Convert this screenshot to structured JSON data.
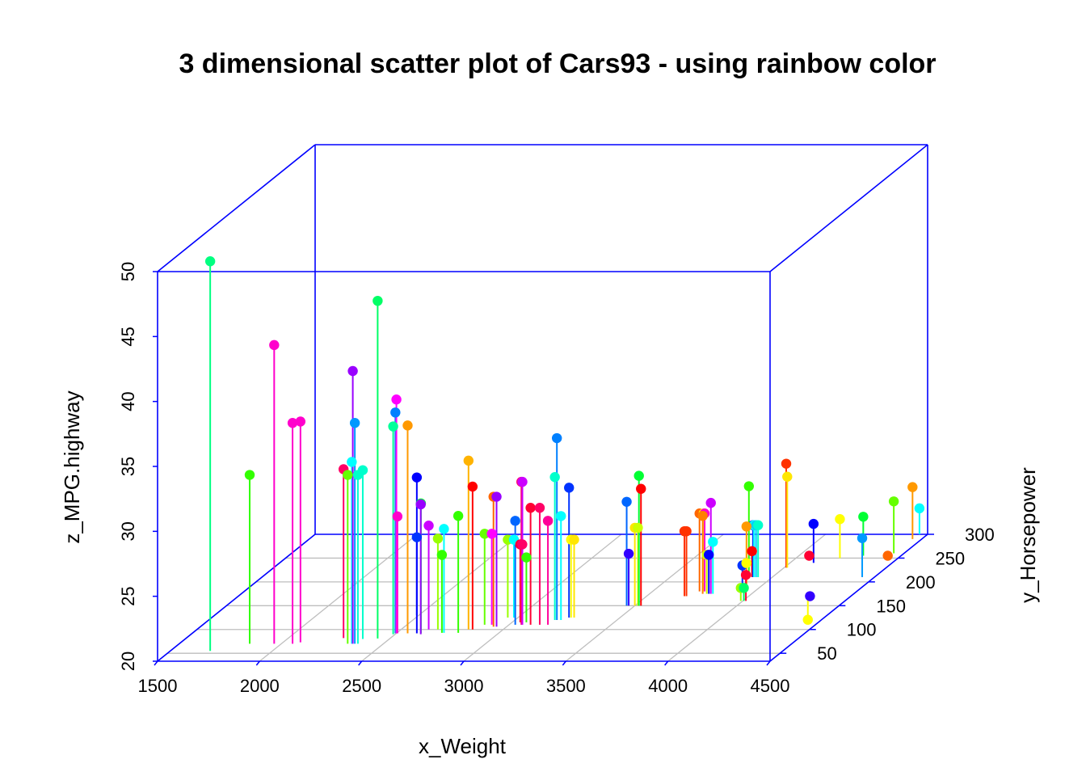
{
  "chart_data": {
    "type": "scatter",
    "variant": "3d-scatter-with-drop-lines",
    "title": "3 dimensional scatter plot of Cars93 - using rainbow color",
    "xlabel": "x_Weight",
    "ylabel": "y_Horsepower",
    "zlabel": "z_MPG.highway",
    "xlim": [
      1500,
      4500
    ],
    "ylim": [
      50,
      300
    ],
    "zlim": [
      20,
      50
    ],
    "x_ticks": [
      "1500",
      "2000",
      "2500",
      "3000",
      "3500",
      "4000",
      "4500"
    ],
    "y_ticks": [
      "50",
      "100",
      "150",
      "200",
      "250",
      "300"
    ],
    "z_ticks": [
      "20",
      "25",
      "30",
      "35",
      "40",
      "45",
      "50"
    ],
    "box_color": "#0000ff",
    "grid_color": "#bebebe",
    "point_color_scheme": "rainbow",
    "points": [
      {
        "x": 1695,
        "y": 55,
        "z": 50,
        "color": "#00FF80"
      },
      {
        "x": 1845,
        "y": 70,
        "z": 33,
        "color": "#33FF00"
      },
      {
        "x": 1965,
        "y": 70,
        "z": 43,
        "color": "#FF00CC"
      },
      {
        "x": 2055,
        "y": 70,
        "z": 37,
        "color": "#FF00CC"
      },
      {
        "x": 2085,
        "y": 73,
        "z": 37,
        "color": "#FF00CC"
      },
      {
        "x": 2270,
        "y": 82,
        "z": 33,
        "color": "#FF0066"
      },
      {
        "x": 2325,
        "y": 70,
        "z": 33,
        "color": "#66FF00"
      },
      {
        "x": 2345,
        "y": 70,
        "z": 34,
        "color": "#00FFFF"
      },
      {
        "x": 2350,
        "y": 70,
        "z": 41,
        "color": "#9900FF"
      },
      {
        "x": 2360,
        "y": 70,
        "z": 37,
        "color": "#0099FF"
      },
      {
        "x": 2370,
        "y": 80,
        "z": 33,
        "color": "#00FFCC"
      },
      {
        "x": 2375,
        "y": 70,
        "z": 33,
        "color": "#00FFCC"
      },
      {
        "x": 2440,
        "y": 81,
        "z": 46,
        "color": "#00FF66"
      },
      {
        "x": 2490,
        "y": 90,
        "z": 36,
        "color": "#00FF99"
      },
      {
        "x": 2495,
        "y": 92,
        "z": 37,
        "color": "#0080FF"
      },
      {
        "x": 2500,
        "y": 92,
        "z": 38,
        "color": "#FF00FF"
      },
      {
        "x": 2505,
        "y": 92,
        "z": 29,
        "color": "#FF00CC"
      },
      {
        "x": 2490,
        "y": 130,
        "z": 26,
        "color": "#0033FF"
      },
      {
        "x": 2555,
        "y": 92,
        "z": 36,
        "color": "#FF9900"
      },
      {
        "x": 2600,
        "y": 92,
        "z": 32,
        "color": "#0000FF"
      },
      {
        "x": 2620,
        "y": 92,
        "z": 30,
        "color": "#00FF33"
      },
      {
        "x": 2625,
        "y": 90,
        "z": 30,
        "color": "#9900FF"
      },
      {
        "x": 2635,
        "y": 100,
        "z": 28,
        "color": "#CC00FF"
      },
      {
        "x": 2680,
        "y": 100,
        "z": 27,
        "color": "#99FF00"
      },
      {
        "x": 2720,
        "y": 93,
        "z": 26,
        "color": "#33FF00"
      },
      {
        "x": 2730,
        "y": 93,
        "z": 28,
        "color": "#00FFFF"
      },
      {
        "x": 2800,
        "y": 93,
        "z": 29,
        "color": "#33FF00"
      },
      {
        "x": 2830,
        "y": 100,
        "z": 33,
        "color": "#FFB300"
      },
      {
        "x": 2850,
        "y": 100,
        "z": 31,
        "color": "#FF0000"
      },
      {
        "x": 2880,
        "y": 110,
        "z": 27,
        "color": "#66FF00"
      },
      {
        "x": 2915,
        "y": 110,
        "z": 27,
        "color": "#FF00FF"
      },
      {
        "x": 2935,
        "y": 106,
        "z": 30,
        "color": "#FF6600"
      },
      {
        "x": 2950,
        "y": 106,
        "z": 30,
        "color": "#9900FF"
      },
      {
        "x": 2950,
        "y": 125,
        "z": 26,
        "color": "#99FF00"
      },
      {
        "x": 2980,
        "y": 125,
        "z": 26,
        "color": "#00FFFF"
      },
      {
        "x": 3030,
        "y": 110,
        "z": 28,
        "color": "#0066FF"
      },
      {
        "x": 3040,
        "y": 115,
        "z": 26,
        "color": "#FF0033"
      },
      {
        "x": 3050,
        "y": 115,
        "z": 26,
        "color": "#FF0066"
      },
      {
        "x": 3060,
        "y": 110,
        "z": 31,
        "color": "#FF0066"
      },
      {
        "x": 3065,
        "y": 110,
        "z": 31,
        "color": "#CC00FF"
      },
      {
        "x": 3070,
        "y": 115,
        "z": 25,
        "color": "#33FF00"
      },
      {
        "x": 3105,
        "y": 110,
        "z": 29,
        "color": "#FF0033"
      },
      {
        "x": 3150,
        "y": 110,
        "z": 29,
        "color": "#FF0066"
      },
      {
        "x": 3190,
        "y": 110,
        "z": 28,
        "color": "#FF0099"
      },
      {
        "x": 3195,
        "y": 120,
        "z": 31,
        "color": "#00FFCC"
      },
      {
        "x": 3205,
        "y": 120,
        "z": 34,
        "color": "#0080FF"
      },
      {
        "x": 3225,
        "y": 120,
        "z": 28,
        "color": "#00FFFF"
      },
      {
        "x": 3250,
        "y": 125,
        "z": 30,
        "color": "#0033FF"
      },
      {
        "x": 3260,
        "y": 125,
        "z": 26,
        "color": "#FFFF00"
      },
      {
        "x": 3275,
        "y": 125,
        "z": 26,
        "color": "#FFE600"
      },
      {
        "x": 3460,
        "y": 150,
        "z": 28,
        "color": "#0066FF"
      },
      {
        "x": 3470,
        "y": 150,
        "z": 24,
        "color": "#3300FF"
      },
      {
        "x": 3500,
        "y": 150,
        "z": 26,
        "color": "#FFE600"
      },
      {
        "x": 3515,
        "y": 150,
        "z": 26,
        "color": "#CCFF00"
      },
      {
        "x": 3520,
        "y": 150,
        "z": 30,
        "color": "#00FF33"
      },
      {
        "x": 3530,
        "y": 150,
        "z": 29,
        "color": "#FF0000"
      },
      {
        "x": 3685,
        "y": 170,
        "z": 25,
        "color": "#FF3300"
      },
      {
        "x": 3695,
        "y": 170,
        "z": 25,
        "color": "#FF3300"
      },
      {
        "x": 3730,
        "y": 180,
        "z": 26,
        "color": "#FF6600"
      },
      {
        "x": 3750,
        "y": 180,
        "z": 26,
        "color": "#FFFF00"
      },
      {
        "x": 3755,
        "y": 180,
        "z": 26,
        "color": "#FF00CC"
      },
      {
        "x": 3760,
        "y": 175,
        "z": 26,
        "color": "#FF8000"
      },
      {
        "x": 3780,
        "y": 175,
        "z": 23,
        "color": "#CCFF00"
      },
      {
        "x": 3790,
        "y": 175,
        "z": 23,
        "color": "#0000FF"
      },
      {
        "x": 3800,
        "y": 175,
        "z": 27,
        "color": "#CC00FF"
      },
      {
        "x": 3810,
        "y": 175,
        "z": 24,
        "color": "#00FFFF"
      },
      {
        "x": 3885,
        "y": 210,
        "z": 27,
        "color": "#33FF00"
      },
      {
        "x": 3900,
        "y": 210,
        "z": 22,
        "color": "#FF0000"
      },
      {
        "x": 3905,
        "y": 210,
        "z": 24,
        "color": "#0033FF"
      },
      {
        "x": 3910,
        "y": 210,
        "z": 24,
        "color": "#00FFFF"
      },
      {
        "x": 3920,
        "y": 210,
        "z": 24,
        "color": "#00CCFF"
      },
      {
        "x": 3930,
        "y": 210,
        "z": 24,
        "color": "#00FFCC"
      },
      {
        "x": 3940,
        "y": 180,
        "z": 22,
        "color": "#0033FF"
      },
      {
        "x": 3945,
        "y": 185,
        "z": 22,
        "color": "#FFFF00"
      },
      {
        "x": 3960,
        "y": 180,
        "z": 25,
        "color": "#FF9900"
      },
      {
        "x": 3990,
        "y": 160,
        "z": 21,
        "color": "#99FF00"
      },
      {
        "x": 4005,
        "y": 160,
        "z": 21,
        "color": "#00FF66"
      },
      {
        "x": 4015,
        "y": 160,
        "z": 22,
        "color": "#FF0033"
      },
      {
        "x": 4010,
        "y": 230,
        "z": 28,
        "color": "#FF3300"
      },
      {
        "x": 4015,
        "y": 230,
        "z": 27,
        "color": "#FFE600"
      },
      {
        "x": 4050,
        "y": 255,
        "z": 20,
        "color": "#FF0033"
      },
      {
        "x": 4115,
        "y": 240,
        "z": 23,
        "color": "#0000FF"
      },
      {
        "x": 4215,
        "y": 250,
        "z": 23,
        "color": "#FFFF00"
      },
      {
        "x": 4315,
        "y": 255,
        "z": 23,
        "color": "#00FF33"
      },
      {
        "x": 4275,
        "y": 175,
        "z": 18,
        "color": "#FFFF00"
      },
      {
        "x": 4300,
        "y": 170,
        "z": 20,
        "color": "#3300FF"
      },
      {
        "x": 4435,
        "y": 255,
        "z": 20,
        "color": "#FF6600"
      },
      {
        "x": 4440,
        "y": 210,
        "z": 23,
        "color": "#0099FF"
      },
      {
        "x": 4450,
        "y": 260,
        "z": 24,
        "color": "#66FF00"
      },
      {
        "x": 4455,
        "y": 290,
        "z": 24,
        "color": "#FF9900"
      },
      {
        "x": 4460,
        "y": 300,
        "z": 22,
        "color": "#00FFFF"
      }
    ]
  }
}
